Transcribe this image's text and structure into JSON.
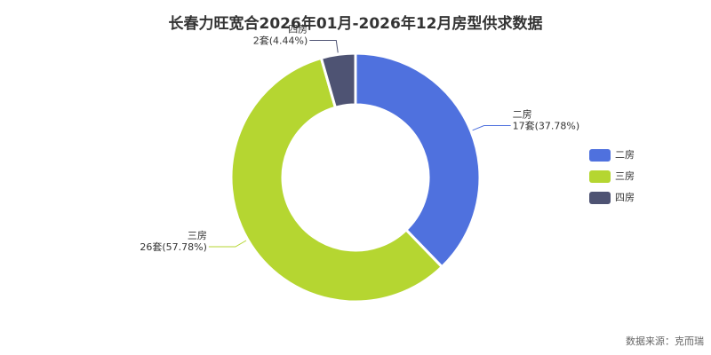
{
  "chart_data": {
    "type": "donut",
    "title": "长春力旺宽合2026年01月-2026年12月房型供求数据",
    "categories": [
      "二房",
      "三房",
      "四房"
    ],
    "values": [
      17,
      26,
      2
    ],
    "value_labels": [
      "17套(37.78%)",
      "26套(57.78%)",
      "2套(4.44%)"
    ],
    "colors": [
      "#4f71de",
      "#b5d631",
      "#4e5373"
    ],
    "source": "数据来源：克而瑞"
  }
}
